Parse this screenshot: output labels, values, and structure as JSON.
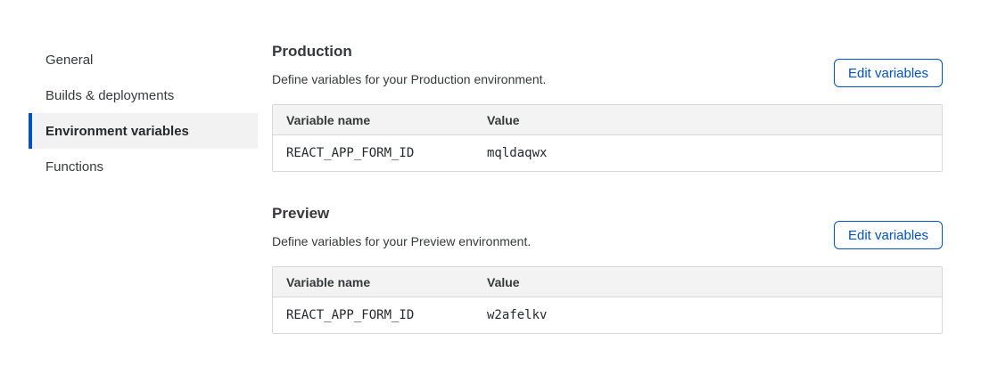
{
  "sidebar": {
    "items": [
      {
        "label": "General",
        "active": false
      },
      {
        "label": "Builds & deployments",
        "active": false
      },
      {
        "label": "Environment variables",
        "active": true
      },
      {
        "label": "Functions",
        "active": false
      }
    ]
  },
  "sections": [
    {
      "title": "Production",
      "description": "Define variables for your Production environment.",
      "button_label": "Edit variables",
      "table": {
        "columns": [
          "Variable name",
          "Value"
        ],
        "rows": [
          {
            "name": "REACT_APP_FORM_ID",
            "value": "mqldaqwx"
          }
        ]
      }
    },
    {
      "title": "Preview",
      "description": "Define variables for your Preview environment.",
      "button_label": "Edit variables",
      "table": {
        "columns": [
          "Variable name",
          "Value"
        ],
        "rows": [
          {
            "name": "REACT_APP_FORM_ID",
            "value": "w2afelkv"
          }
        ]
      }
    }
  ],
  "colors": {
    "accent_blue": "#0051c3",
    "active_item_bg": "#f2f2f2",
    "table_header_bg": "#f3f3f3",
    "table_border": "#d5d7d8",
    "text_dark": "#36393a"
  }
}
